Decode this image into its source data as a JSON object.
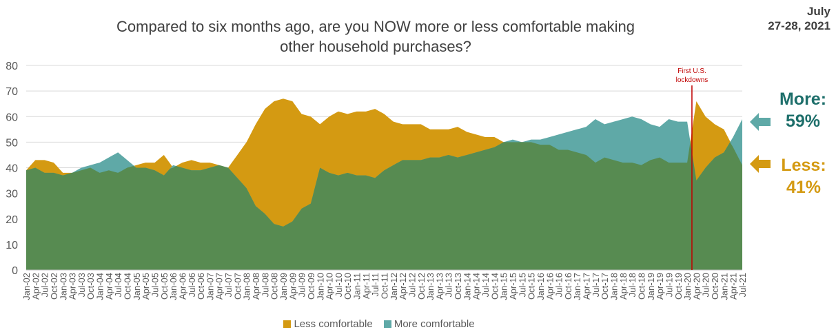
{
  "header": {
    "title_line1": "Compared to six months ago, are you NOW more or less comfortable making",
    "title_line2": "other household purchases?",
    "date_line1": "July",
    "date_line2": "27-28, 2021"
  },
  "side_labels": {
    "more_word": "More:",
    "more_value": "59%",
    "less_word": "Less:",
    "less_value": "41%"
  },
  "annotation": {
    "line1": "First U.S.",
    "line2": "lockdowns",
    "date": "Mar-20"
  },
  "colors": {
    "less": "#d49a12",
    "more": "#5fa9a7",
    "net": "#578b51",
    "annotation": "#c00000",
    "more_label": "#1e6f6b",
    "less_label": "#d49a12",
    "grid": "#d9d9d9",
    "axis_text": "#595959"
  },
  "chart_data": {
    "type": "area",
    "title": "Compared to six months ago, are you NOW more or less comfortable making other household purchases?",
    "xlabel": "",
    "ylabel": "",
    "ylim": [
      0,
      80
    ],
    "yticks": [
      0,
      10,
      20,
      30,
      40,
      50,
      60,
      70,
      80
    ],
    "grid": true,
    "legend_position": "bottom",
    "x_start": "Jan-02",
    "x_end": "Jul-21",
    "x_tick_labels": [
      "Jan-02",
      "Apr-02",
      "Jul-02",
      "Oct-02",
      "Jan-03",
      "Apr-03",
      "Jul-03",
      "Oct-03",
      "Jan-04",
      "Apr-04",
      "Jul-04",
      "Oct-04",
      "Jan-05",
      "Apr-05",
      "Jul-05",
      "Oct-05",
      "Jan-06",
      "Apr-06",
      "Jul-06",
      "Oct-06",
      "Jan-07",
      "Apr-07",
      "Jul-07",
      "Oct-07",
      "Jan-08",
      "Apr-08",
      "Jul-08",
      "Oct-08",
      "Jan-09",
      "Apr-09",
      "Jul-09",
      "Oct-09",
      "Jan-10",
      "Apr-10",
      "Jul-10",
      "Oct-10",
      "Jan-11",
      "Apr-11",
      "Jul-11",
      "Oct-11",
      "Jan-12",
      "Apr-12",
      "Jul-12",
      "Oct-12",
      "Jan-13",
      "Apr-13",
      "Jul-13",
      "Oct-13",
      "Jan-14",
      "Apr-14",
      "Jul-14",
      "Oct-14",
      "Jan-15",
      "Apr-15",
      "Jul-15",
      "Oct-15",
      "Jan-16",
      "Apr-16",
      "Jul-16",
      "Oct-16",
      "Jan-17",
      "Apr-17",
      "Jul-17",
      "Oct-17",
      "Jan-18",
      "Apr-18",
      "Jul-18",
      "Oct-18",
      "Jan-19",
      "Apr-19",
      "Jul-19",
      "Oct-19",
      "Jan-20",
      "Apr-20",
      "Jul-20",
      "Oct-20",
      "Jan-21",
      "Apr-21",
      "Jul-21"
    ],
    "series": [
      {
        "name": "Less comfortable",
        "points": [
          [
            "Jan-02",
            39
          ],
          [
            "Apr-02",
            43
          ],
          [
            "Jul-02",
            43
          ],
          [
            "Oct-02",
            42
          ],
          [
            "Jan-03",
            38
          ],
          [
            "Apr-03",
            38
          ],
          [
            "Jul-03",
            39
          ],
          [
            "Oct-03",
            40
          ],
          [
            "Jan-04",
            38
          ],
          [
            "Apr-04",
            39
          ],
          [
            "Jul-04",
            38
          ],
          [
            "Oct-04",
            40
          ],
          [
            "Jan-05",
            41
          ],
          [
            "Apr-05",
            42
          ],
          [
            "Jul-05",
            42
          ],
          [
            "Oct-05",
            45
          ],
          [
            "Jan-06",
            40
          ],
          [
            "Apr-06",
            42
          ],
          [
            "Jul-06",
            43
          ],
          [
            "Oct-06",
            42
          ],
          [
            "Jan-07",
            42
          ],
          [
            "Apr-07",
            41
          ],
          [
            "Jul-07",
            40
          ],
          [
            "Oct-07",
            45
          ],
          [
            "Jan-08",
            50
          ],
          [
            "Apr-08",
            57
          ],
          [
            "Jul-08",
            63
          ],
          [
            "Oct-08",
            66
          ],
          [
            "Jan-09",
            67
          ],
          [
            "Apr-09",
            66
          ],
          [
            "Jul-09",
            61
          ],
          [
            "Oct-09",
            60
          ],
          [
            "Jan-10",
            57
          ],
          [
            "Apr-10",
            60
          ],
          [
            "Jul-10",
            62
          ],
          [
            "Oct-10",
            61
          ],
          [
            "Jan-11",
            62
          ],
          [
            "Apr-11",
            62
          ],
          [
            "Jul-11",
            63
          ],
          [
            "Oct-11",
            61
          ],
          [
            "Jan-12",
            58
          ],
          [
            "Apr-12",
            57
          ],
          [
            "Jul-12",
            57
          ],
          [
            "Oct-12",
            57
          ],
          [
            "Jan-13",
            55
          ],
          [
            "Apr-13",
            55
          ],
          [
            "Jul-13",
            55
          ],
          [
            "Oct-13",
            56
          ],
          [
            "Jan-14",
            54
          ],
          [
            "Apr-14",
            53
          ],
          [
            "Jul-14",
            52
          ],
          [
            "Oct-14",
            52
          ],
          [
            "Jan-15",
            50
          ],
          [
            "Apr-15",
            50
          ],
          [
            "Jul-15",
            50
          ],
          [
            "Oct-15",
            50
          ],
          [
            "Jan-16",
            49
          ],
          [
            "Apr-16",
            49
          ],
          [
            "Jul-16",
            47
          ],
          [
            "Oct-16",
            47
          ],
          [
            "Jan-17",
            46
          ],
          [
            "Apr-17",
            45
          ],
          [
            "Jul-17",
            42
          ],
          [
            "Oct-17",
            44
          ],
          [
            "Jan-18",
            43
          ],
          [
            "Apr-18",
            42
          ],
          [
            "Jul-18",
            42
          ],
          [
            "Oct-18",
            41
          ],
          [
            "Jan-19",
            43
          ],
          [
            "Apr-19",
            44
          ],
          [
            "Jul-19",
            42
          ],
          [
            "Oct-19",
            42
          ],
          [
            "Jan-20",
            42
          ],
          [
            "Apr-20",
            66
          ],
          [
            "Jul-20",
            60
          ],
          [
            "Oct-20",
            57
          ],
          [
            "Jan-21",
            55
          ],
          [
            "Apr-21",
            48
          ],
          [
            "Jul-21",
            41
          ]
        ]
      },
      {
        "name": "More comfortable",
        "points": [
          [
            "Jan-02",
            39
          ],
          [
            "Apr-02",
            40
          ],
          [
            "Jul-02",
            38
          ],
          [
            "Oct-02",
            38
          ],
          [
            "Jan-03",
            37
          ],
          [
            "Apr-03",
            38
          ],
          [
            "Jul-03",
            40
          ],
          [
            "Oct-03",
            41
          ],
          [
            "Jan-04",
            42
          ],
          [
            "Apr-04",
            44
          ],
          [
            "Jul-04",
            46
          ],
          [
            "Oct-04",
            43
          ],
          [
            "Jan-05",
            40
          ],
          [
            "Apr-05",
            40
          ],
          [
            "Jul-05",
            39
          ],
          [
            "Oct-05",
            37
          ],
          [
            "Jan-06",
            41
          ],
          [
            "Apr-06",
            40
          ],
          [
            "Jul-06",
            39
          ],
          [
            "Oct-06",
            39
          ],
          [
            "Jan-07",
            40
          ],
          [
            "Apr-07",
            41
          ],
          [
            "Jul-07",
            40
          ],
          [
            "Oct-07",
            36
          ],
          [
            "Jan-08",
            32
          ],
          [
            "Apr-08",
            25
          ],
          [
            "Jul-08",
            22
          ],
          [
            "Oct-08",
            18
          ],
          [
            "Jan-09",
            17
          ],
          [
            "Apr-09",
            19
          ],
          [
            "Jul-09",
            24
          ],
          [
            "Oct-09",
            26
          ],
          [
            "Jan-10",
            40
          ],
          [
            "Apr-10",
            38
          ],
          [
            "Jul-10",
            37
          ],
          [
            "Oct-10",
            38
          ],
          [
            "Jan-11",
            37
          ],
          [
            "Apr-11",
            37
          ],
          [
            "Jul-11",
            36
          ],
          [
            "Oct-11",
            39
          ],
          [
            "Jan-12",
            41
          ],
          [
            "Apr-12",
            43
          ],
          [
            "Jul-12",
            43
          ],
          [
            "Oct-12",
            43
          ],
          [
            "Jan-13",
            44
          ],
          [
            "Apr-13",
            44
          ],
          [
            "Jul-13",
            45
          ],
          [
            "Oct-13",
            44
          ],
          [
            "Jan-14",
            45
          ],
          [
            "Apr-14",
            46
          ],
          [
            "Jul-14",
            47
          ],
          [
            "Oct-14",
            48
          ],
          [
            "Jan-15",
            50
          ],
          [
            "Apr-15",
            51
          ],
          [
            "Jul-15",
            50
          ],
          [
            "Oct-15",
            51
          ],
          [
            "Jan-16",
            51
          ],
          [
            "Apr-16",
            52
          ],
          [
            "Jul-16",
            53
          ],
          [
            "Oct-16",
            54
          ],
          [
            "Jan-17",
            55
          ],
          [
            "Apr-17",
            56
          ],
          [
            "Jul-17",
            59
          ],
          [
            "Oct-17",
            57
          ],
          [
            "Jan-18",
            58
          ],
          [
            "Apr-18",
            59
          ],
          [
            "Jul-18",
            60
          ],
          [
            "Oct-18",
            59
          ],
          [
            "Jan-19",
            57
          ],
          [
            "Apr-19",
            56
          ],
          [
            "Jul-19",
            59
          ],
          [
            "Oct-19",
            58
          ],
          [
            "Jan-20",
            58
          ],
          [
            "Apr-20",
            35
          ],
          [
            "Jul-20",
            40
          ],
          [
            "Oct-20",
            44
          ],
          [
            "Jan-21",
            46
          ],
          [
            "Apr-21",
            52
          ],
          [
            "Jul-21",
            59
          ]
        ]
      }
    ]
  }
}
